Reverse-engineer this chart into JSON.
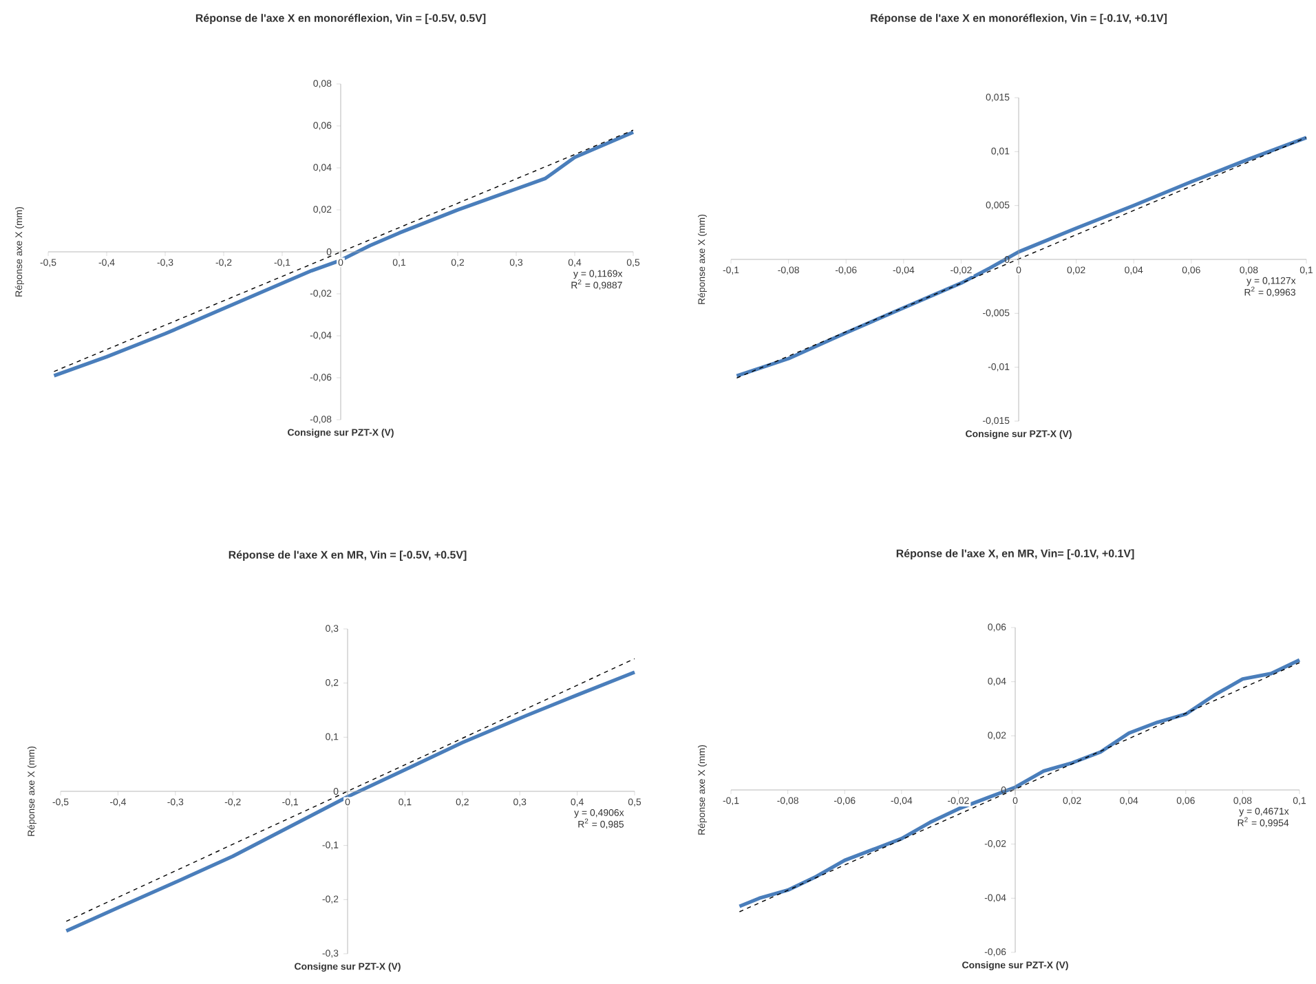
{
  "chart_data": [
    {
      "type": "line",
      "title": "Réponse de l'axe X en monoréflexion, Vin = [-0.5V, 0.5V]",
      "xlabel": "Consigne sur PZT-X (V)",
      "ylabel": "Réponse axe X (mm)",
      "annotations": [
        "y = 0,1169x",
        "R$^{2}$ = 0,9887"
      ],
      "xlim": [
        -0.5,
        0.5
      ],
      "ylim": [
        -0.08,
        0.08
      ],
      "xticks": [
        {
          "value": -0.5,
          "label": "-0,5"
        },
        {
          "value": -0.4,
          "label": "-0,4"
        },
        {
          "value": -0.3,
          "label": "-0,3"
        },
        {
          "value": -0.2,
          "label": "-0,2"
        },
        {
          "value": -0.1,
          "label": "-0,1"
        },
        0,
        {
          "value": 0.1,
          "label": "0,1"
        },
        {
          "value": 0.2,
          "label": "0,2"
        },
        {
          "value": 0.3,
          "label": "0,3"
        },
        {
          "value": 0.4,
          "label": "0,4"
        },
        {
          "value": 0.5,
          "label": "0,5"
        }
      ],
      "yticks": [
        {
          "value": -0.08,
          "label": "-0,08"
        },
        {
          "value": -0.06,
          "label": "-0,06"
        },
        {
          "value": -0.04,
          "label": "-0,04"
        },
        {
          "value": -0.02,
          "label": "-0,02"
        },
        0,
        {
          "value": 0.02,
          "label": "0,02"
        },
        {
          "value": 0.04,
          "label": "0,04"
        },
        {
          "value": 0.06,
          "label": "0,06"
        },
        {
          "value": 0.08,
          "label": "0,08"
        }
      ],
      "series": [
        {
          "color": "#4a7ebb",
          "line_style": "solid",
          "x": [
            -0.49,
            -0.4,
            -0.3,
            -0.2,
            -0.1,
            -0.05,
            0,
            0.05,
            0.1,
            0.2,
            0.3,
            0.35,
            0.4,
            0.5
          ],
          "values": [
            -0.059,
            -0.05,
            -0.039,
            -0.027,
            -0.015,
            -0.009,
            -0.004,
            0.003,
            0.009,
            0.02,
            0.03,
            0.035,
            0.045,
            0.057
          ]
        },
        {
          "type": "line",
          "color": "#000000",
          "line_style": "dashed",
          "x": [
            -0.49,
            0.5
          ],
          "values": [
            -0.057,
            0.058
          ]
        }
      ]
    },
    {
      "type": "line",
      "title": "Réponse de l'axe X en monoréflexion, Vin = [-0.1V, +0.1V]",
      "xlabel": "Consigne sur PZT-X (V)",
      "ylabel": "Réponse axe X (mm)",
      "annotations": [
        "y = 0,1127x",
        "R$^{2}$ = 0,9963"
      ],
      "xlim": [
        -0.1,
        0.1
      ],
      "ylim": [
        -0.015,
        0.015
      ],
      "xticks": [
        {
          "value": -0.1,
          "label": "-0,1"
        },
        {
          "value": -0.08,
          "label": "-0,08"
        },
        {
          "value": -0.06,
          "label": "-0,06"
        },
        {
          "value": -0.04,
          "label": "-0,04"
        },
        {
          "value": -0.02,
          "label": "-0,02"
        },
        0,
        {
          "value": 0.02,
          "label": "0,02"
        },
        {
          "value": 0.04,
          "label": "0,04"
        },
        {
          "value": 0.06,
          "label": "0,06"
        },
        {
          "value": 0.08,
          "label": "0,08"
        },
        {
          "value": 0.1,
          "label": "0,1"
        }
      ],
      "yticks": [
        {
          "value": -0.015,
          "label": "-0,015"
        },
        {
          "value": -0.01,
          "label": "-0,01"
        },
        {
          "value": -0.005,
          "label": "-0,005"
        },
        0,
        {
          "value": 0.005,
          "label": "0,005"
        },
        {
          "value": 0.01,
          "label": "0,01"
        },
        {
          "value": 0.015,
          "label": "0,015"
        }
      ],
      "series": [
        {
          "color": "#4a7ebb",
          "line_style": "solid",
          "x": [
            -0.098,
            -0.08,
            -0.06,
            -0.04,
            -0.02,
            -0.01,
            0,
            0.02,
            0.04,
            0.06,
            0.08,
            0.1
          ],
          "values": [
            -0.0108,
            -0.0092,
            -0.0068,
            -0.0045,
            -0.0022,
            -0.0008,
            0.0007,
            0.0029,
            0.005,
            0.0072,
            0.0093,
            0.0113
          ]
        },
        {
          "type": "line",
          "color": "#000000",
          "line_style": "dashed",
          "x": [
            -0.098,
            0.1
          ],
          "values": [
            -0.011,
            0.0113
          ]
        }
      ]
    },
    {
      "type": "line",
      "title": "Réponse de l'axe X en MR, Vin = [-0.5V, +0.5V]",
      "xlabel": "Consigne sur PZT-X (V)",
      "ylabel": "Réponse axe X (mm)",
      "annotations": [
        "y = 0,4906x",
        "R$^{2}$ = 0,985"
      ],
      "xlim": [
        -0.5,
        0.5
      ],
      "ylim": [
        -0.3,
        0.3
      ],
      "xticks": [
        {
          "value": -0.5,
          "label": "-0,5"
        },
        {
          "value": -0.4,
          "label": "-0,4"
        },
        {
          "value": -0.3,
          "label": "-0,3"
        },
        {
          "value": -0.2,
          "label": "-0,2"
        },
        {
          "value": -0.1,
          "label": "-0,1"
        },
        0,
        {
          "value": 0.1,
          "label": "0,1"
        },
        {
          "value": 0.2,
          "label": "0,2"
        },
        {
          "value": 0.3,
          "label": "0,3"
        },
        {
          "value": 0.4,
          "label": "0,4"
        },
        {
          "value": 0.5,
          "label": "0,5"
        }
      ],
      "yticks": [
        {
          "value": -0.3,
          "label": "-0,3"
        },
        {
          "value": -0.2,
          "label": "-0,2"
        },
        {
          "value": -0.1,
          "label": "-0,1"
        },
        0,
        {
          "value": 0.1,
          "label": "0,1"
        },
        {
          "value": 0.2,
          "label": "0,2"
        },
        {
          "value": 0.3,
          "label": "0,3"
        }
      ],
      "series": [
        {
          "color": "#4a7ebb",
          "line_style": "solid",
          "x": [
            -0.49,
            -0.4,
            -0.3,
            -0.2,
            -0.1,
            0,
            0.1,
            0.2,
            0.3,
            0.4,
            0.5
          ],
          "values": [
            -0.258,
            -0.215,
            -0.168,
            -0.12,
            -0.065,
            -0.01,
            0.04,
            0.09,
            0.135,
            0.178,
            0.22
          ]
        },
        {
          "type": "line",
          "color": "#000000",
          "line_style": "dashed",
          "x": [
            -0.49,
            0.5
          ],
          "values": [
            -0.24,
            0.245
          ]
        }
      ]
    },
    {
      "type": "line",
      "title": "Réponse de l'axe X, en MR, Vin= [-0.1V, +0.1V]",
      "xlabel": "Consigne sur PZT-X (V)",
      "ylabel": "Réponse axe X (mm)",
      "annotations": [
        "y = 0,4671x",
        "R$^{2}$ = 0,9954"
      ],
      "xlim": [
        -0.1,
        0.1
      ],
      "ylim": [
        -0.06,
        0.06
      ],
      "xticks": [
        {
          "value": -0.1,
          "label": "-0,1"
        },
        {
          "value": -0.08,
          "label": "-0,08"
        },
        {
          "value": -0.06,
          "label": "-0,06"
        },
        {
          "value": -0.04,
          "label": "-0,04"
        },
        {
          "value": -0.02,
          "label": "-0,02"
        },
        0,
        {
          "value": 0.02,
          "label": "0,02"
        },
        {
          "value": 0.04,
          "label": "0,04"
        },
        {
          "value": 0.06,
          "label": "0,06"
        },
        {
          "value": 0.08,
          "label": "0,08"
        },
        {
          "value": 0.1,
          "label": "0,1"
        }
      ],
      "yticks": [
        {
          "value": -0.06,
          "label": "-0,06"
        },
        {
          "value": -0.04,
          "label": "-0,04"
        },
        {
          "value": -0.02,
          "label": "-0,02"
        },
        0,
        {
          "value": 0.02,
          "label": "0,02"
        },
        {
          "value": 0.04,
          "label": "0,04"
        },
        {
          "value": 0.06,
          "label": "0,06"
        }
      ],
      "series": [
        {
          "color": "#4a7ebb",
          "line_style": "solid",
          "x": [
            -0.097,
            -0.09,
            -0.08,
            -0.07,
            -0.06,
            -0.05,
            -0.04,
            -0.03,
            -0.02,
            -0.01,
            0,
            0.01,
            0.02,
            0.03,
            0.04,
            0.05,
            0.06,
            0.07,
            0.08,
            0.09,
            0.1
          ],
          "values": [
            -0.043,
            -0.04,
            -0.037,
            -0.032,
            -0.026,
            -0.022,
            -0.018,
            -0.012,
            -0.007,
            -0.003,
            0.001,
            0.007,
            0.01,
            0.014,
            0.021,
            0.025,
            0.028,
            0.035,
            0.041,
            0.043,
            0.048
          ]
        },
        {
          "type": "line",
          "color": "#000000",
          "line_style": "dashed",
          "x": [
            -0.097,
            0.1
          ],
          "values": [
            -0.045,
            0.047
          ]
        }
      ]
    }
  ]
}
